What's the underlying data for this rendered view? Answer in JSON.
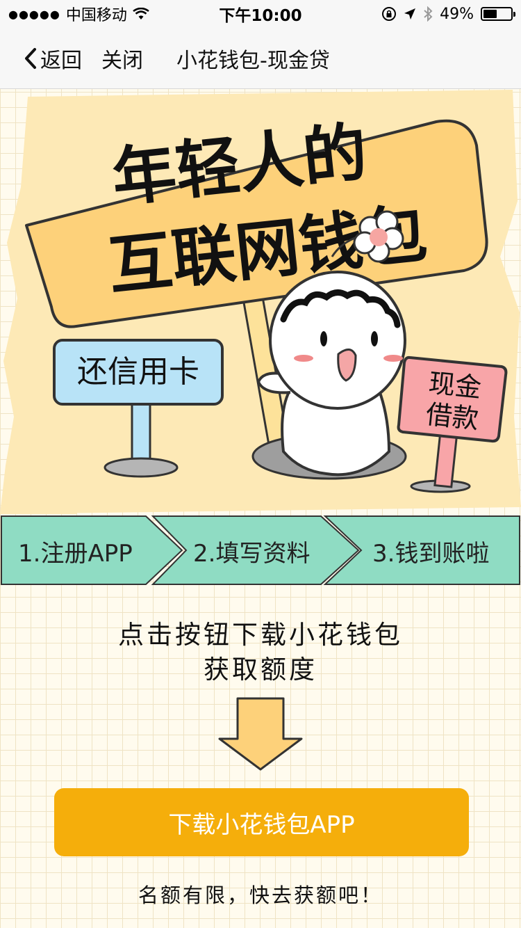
{
  "status_bar": {
    "signal": "●●●●●",
    "carrier": "中国移动",
    "time": "下午10:00",
    "battery": "49%",
    "battery_level": 0.49
  },
  "nav": {
    "back_label": "返回",
    "close_label": "关闭",
    "title": "小花钱包-现金贷"
  },
  "hero": {
    "headline_line1": "年轻人的",
    "headline_line2": "互联网钱包",
    "sign_credit": "还信用卡",
    "sign_cash_line1": "现金",
    "sign_cash_line2": "借款"
  },
  "steps": [
    "1.注册APP",
    "2.填写资料",
    "3.钱到账啦"
  ],
  "prompt": {
    "line1": "点击按钮下载小花钱包",
    "line2": "获取额度"
  },
  "download_button": "下载小花钱包APP",
  "footer_note": "名额有限，快去获额吧！",
  "colors": {
    "accent": "#f5ae0b",
    "step_bg": "#8fdcc3",
    "sign_yellow": "#fdd17a",
    "sign_blue": "#b8e3f7",
    "sign_pink": "#f8a5a8"
  }
}
